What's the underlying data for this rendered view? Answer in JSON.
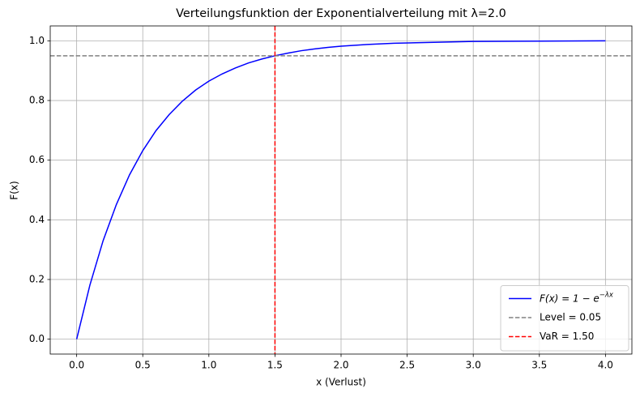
{
  "chart_data": {
    "type": "line",
    "title": "Verteilungsfunktion der Exponentialverteilung mit λ=2.0",
    "x_label": "x (Verlust)",
    "y_label": "F(x)",
    "x": [
      0,
      0.1,
      0.2,
      0.3,
      0.4,
      0.5,
      0.6,
      0.7,
      0.8,
      0.9,
      1.0,
      1.1,
      1.2,
      1.3,
      1.4,
      1.5,
      1.6,
      1.7,
      1.8,
      1.9,
      2.0,
      2.2,
      2.4,
      2.6,
      2.8,
      3.0,
      3.5,
      4.0
    ],
    "series": [
      {
        "name": "F(x) = 1 − e",
        "name_sup": "−λx",
        "color": "#0000ff",
        "values": [
          0,
          0.181,
          0.33,
          0.451,
          0.551,
          0.632,
          0.699,
          0.753,
          0.798,
          0.835,
          0.865,
          0.889,
          0.909,
          0.926,
          0.939,
          0.95,
          0.959,
          0.967,
          0.973,
          0.978,
          0.982,
          0.988,
          0.992,
          0.994,
          0.996,
          0.998,
          0.999,
          1.0
        ]
      }
    ],
    "hlines": [
      {
        "name": "Level = 0.05",
        "color": "#808080",
        "y": 0.95
      }
    ],
    "vlines": [
      {
        "name": "VaR = 1.50",
        "color": "#ff0000",
        "x": 1.5
      }
    ],
    "xlim": [
      -0.2,
      4.2
    ],
    "ylim": [
      -0.05,
      1.05
    ],
    "xticks": [
      {
        "value": 0,
        "label": "0.0"
      },
      0.5,
      {
        "value": 1,
        "label": "1.0"
      },
      1.5,
      {
        "value": 2,
        "label": "2.0"
      },
      2.5,
      {
        "value": 3,
        "label": "3.0"
      },
      3.5,
      {
        "value": 4,
        "label": "4.0"
      }
    ],
    "yticks": [
      {
        "value": 0,
        "label": "0.0"
      },
      0.2,
      0.4,
      0.6,
      0.8,
      {
        "value": 1,
        "label": "1.0"
      }
    ],
    "grid": true,
    "legend": "lower right"
  }
}
